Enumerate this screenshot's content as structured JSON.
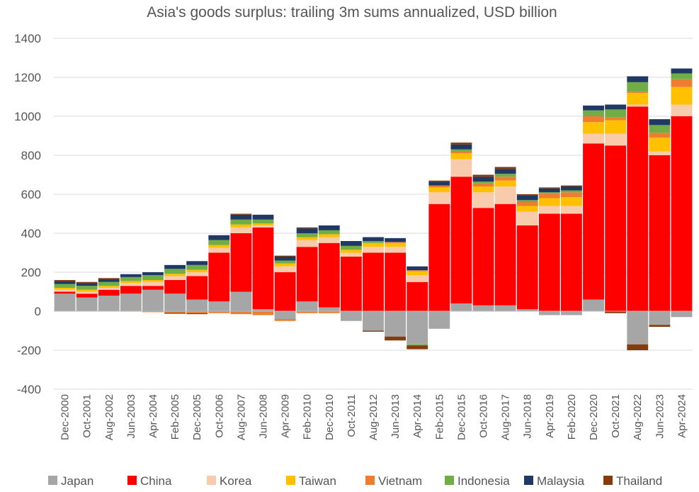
{
  "chart_data": {
    "type": "bar",
    "stacked": true,
    "title": "Asia's goods surplus: trailing 3m sums annualized, USD billion",
    "xlabel": "",
    "ylabel": "",
    "ylim": [
      -400,
      1400
    ],
    "yticks": [
      -400,
      -200,
      0,
      200,
      400,
      600,
      800,
      1000,
      1200,
      1400
    ],
    "grid": true,
    "legend_position": "bottom",
    "x_tick_labels": [
      "Dec-2000",
      "Oct-2001",
      "Aug-2002",
      "Jun-2003",
      "Apr-2004",
      "Feb-2005",
      "Dec-2005",
      "Oct-2006",
      "Aug-2007",
      "Jun-2008",
      "Apr-2009",
      "Feb-2010",
      "Dec-2010",
      "Oct-2011",
      "Aug-2012",
      "Jun-2013",
      "Apr-2014",
      "Feb-2015",
      "Dec-2015",
      "Oct-2016",
      "Aug-2017",
      "Jun-2018",
      "Apr-2019",
      "Feb-2020",
      "Dec-2020",
      "Oct-2021",
      "Aug-2022",
      "Jun-2023",
      "Apr-2024"
    ],
    "categories": [
      "Dec-2000",
      "Oct-2001",
      "Aug-2002",
      "Jun-2003",
      "Apr-2004",
      "Feb-2005",
      "Dec-2005",
      "Oct-2006",
      "Aug-2007",
      "Jun-2008",
      "Apr-2009",
      "Feb-2010",
      "Dec-2010",
      "Oct-2011",
      "Aug-2012",
      "Jun-2013",
      "Apr-2014",
      "Feb-2015",
      "Dec-2015",
      "Oct-2016",
      "Aug-2017",
      "Jun-2018",
      "Apr-2019",
      "Feb-2020",
      "Dec-2020",
      "Oct-2021",
      "Aug-2022",
      "Jun-2023",
      "Apr-2024"
    ],
    "series": [
      {
        "name": "Japan",
        "color": "#a6a6a6",
        "values": [
          90,
          70,
          80,
          90,
          110,
          90,
          60,
          50,
          100,
          10,
          -40,
          50,
          20,
          -50,
          -100,
          -130,
          -170,
          -90,
          40,
          30,
          30,
          10,
          -20,
          -20,
          60,
          0,
          -170,
          -70,
          -30
        ]
      },
      {
        "name": "China",
        "color": "#ff0000",
        "values": [
          10,
          20,
          30,
          40,
          20,
          70,
          120,
          250,
          300,
          420,
          200,
          280,
          330,
          280,
          300,
          300,
          150,
          550,
          650,
          500,
          520,
          430,
          500,
          500,
          800,
          850,
          1050,
          800,
          1000
        ]
      },
      {
        "name": "Korea",
        "color": "#f8cbad",
        "values": [
          10,
          10,
          10,
          15,
          20,
          20,
          20,
          25,
          30,
          10,
          30,
          35,
          30,
          20,
          30,
          30,
          35,
          60,
          90,
          80,
          90,
          70,
          40,
          40,
          50,
          60,
          10,
          20,
          60
        ]
      },
      {
        "name": "Taiwan",
        "color": "#ffc000",
        "values": [
          10,
          10,
          10,
          10,
          10,
          12,
          12,
          15,
          15,
          10,
          15,
          15,
          15,
          15,
          20,
          20,
          20,
          25,
          30,
          30,
          30,
          30,
          40,
          45,
          60,
          70,
          60,
          70,
          90
        ]
      },
      {
        "name": "Vietnam",
        "color": "#ed7d31",
        "values": [
          0,
          0,
          0,
          -2,
          -5,
          -8,
          -10,
          -10,
          -15,
          -20,
          -10,
          -10,
          -10,
          0,
          0,
          5,
          5,
          10,
          10,
          15,
          20,
          20,
          25,
          25,
          30,
          15,
          5,
          25,
          40
        ]
      },
      {
        "name": "Indonesia",
        "color": "#70ad47",
        "values": [
          20,
          20,
          20,
          20,
          25,
          25,
          25,
          25,
          25,
          20,
          15,
          20,
          20,
          20,
          10,
          0,
          -5,
          0,
          10,
          10,
          15,
          10,
          5,
          10,
          30,
          40,
          50,
          40,
          30
        ]
      },
      {
        "name": "Malaysia",
        "color": "#203864",
        "values": [
          15,
          15,
          15,
          15,
          15,
          20,
          20,
          25,
          25,
          25,
          20,
          25,
          25,
          25,
          20,
          20,
          20,
          20,
          25,
          25,
          25,
          25,
          20,
          20,
          25,
          25,
          30,
          30,
          25
        ]
      },
      {
        "name": "Thailand",
        "color": "#843c0c",
        "values": [
          5,
          5,
          5,
          0,
          0,
          -5,
          -5,
          0,
          5,
          0,
          5,
          5,
          0,
          0,
          -5,
          -20,
          -20,
          5,
          10,
          10,
          10,
          5,
          5,
          5,
          0,
          -10,
          -30,
          -10,
          0
        ]
      }
    ]
  }
}
